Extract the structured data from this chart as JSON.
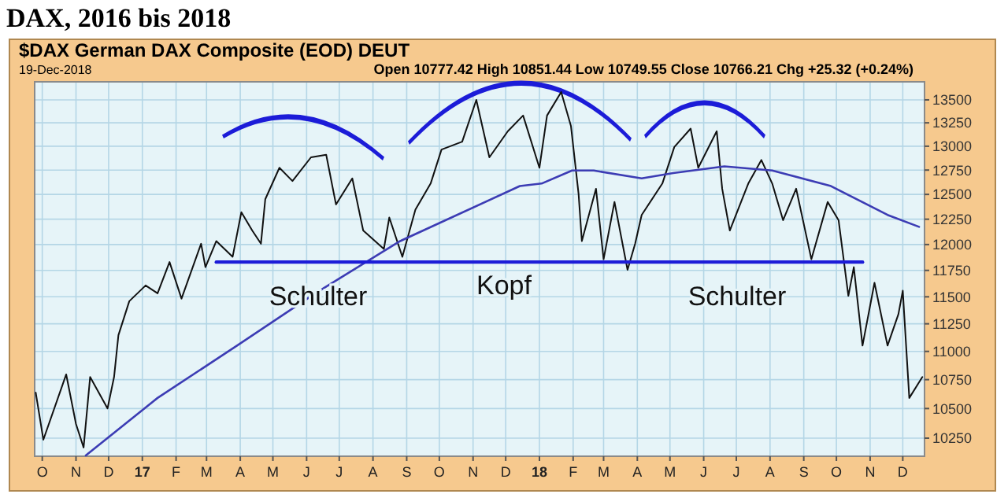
{
  "chart_data": {
    "type": "line",
    "title": "DAX, 2016 bis 2018",
    "subtitle": "$DAX German DAX Composite (EOD) DEUT",
    "annotations": [
      "19-Dec-2018",
      "Open 10777.42 High 10851.44 Low 10749.55 Close 10766.21 Chg +25.32 (+0.24%)",
      "Schulter",
      "Kopf",
      "Schulter"
    ],
    "x": [
      "2016-09-25",
      "2016-10-02",
      "2016-10-23",
      "2016-11-01",
      "2016-11-08",
      "2016-11-14",
      "2016-11-30",
      "2016-12-06",
      "2016-12-10",
      "2016-12-20",
      "2017-01-04",
      "2017-01-15",
      "2017-01-26",
      "2017-02-06",
      "2017-02-24",
      "2017-02-28",
      "2017-03-10",
      "2017-03-25",
      "2017-04-02",
      "2017-04-12",
      "2017-04-20",
      "2017-04-24",
      "2017-05-07",
      "2017-05-19",
      "2017-06-05",
      "2017-06-19",
      "2017-06-28",
      "2017-07-13",
      "2017-07-23",
      "2017-08-11",
      "2017-08-16",
      "2017-08-28",
      "2017-09-09",
      "2017-09-23",
      "2017-10-03",
      "2017-10-22",
      "2017-11-04",
      "2017-11-16",
      "2017-12-03",
      "2017-12-17",
      "2018-01-01",
      "2018-01-08",
      "2018-01-21",
      "2018-01-30",
      "2018-02-06",
      "2018-02-09",
      "2018-02-22",
      "2018-03-01",
      "2018-03-11",
      "2018-03-23",
      "2018-03-30",
      "2018-04-05",
      "2018-04-24",
      "2018-05-05",
      "2018-05-20",
      "2018-05-27",
      "2018-06-13",
      "2018-06-18",
      "2018-06-25",
      "2018-07-12",
      "2018-07-24",
      "2018-08-03",
      "2018-08-13",
      "2018-08-25",
      "2018-09-08",
      "2018-09-23",
      "2018-10-03",
      "2018-10-12",
      "2018-10-17",
      "2018-10-25",
      "2018-11-05",
      "2018-11-17",
      "2018-11-27",
      "2018-12-01",
      "2018-12-07",
      "2018-12-19"
    ],
    "series": [
      {
        "color": "#111111",
        "values": [
          10637,
          10237,
          10796,
          10369,
          10172,
          10773,
          10501,
          10773,
          11146,
          11459,
          11607,
          11533,
          11830,
          11483,
          12008,
          11781,
          12034,
          11881,
          12320,
          12138,
          12008,
          12451,
          12774,
          12637,
          12883,
          12910,
          12398,
          12664,
          12138,
          11957,
          12267,
          11881,
          12346,
          12611,
          12965,
          13048,
          13500,
          12883,
          13160,
          13329,
          12774,
          13329,
          13587,
          13215,
          12504,
          12034,
          12558,
          11857,
          12424,
          11756,
          12008,
          12293,
          12611,
          12992,
          13188,
          12774,
          13160,
          12558,
          12138,
          12611,
          12855,
          12611,
          12240,
          12558,
          11857,
          12424,
          12240,
          11509,
          11781,
          11052,
          11632,
          11052,
          11339,
          11557,
          10591,
          10773
        ]
      },
      {
        "color": "#3c3cb4",
        "x": [
          "2016-11-10",
          "2017-01-15",
          "2017-03-29",
          "2017-06-09",
          "2017-08-26",
          "2017-12-14",
          "2018-01-03",
          "2018-01-31",
          "2018-02-20",
          "2018-04-05",
          "2018-05-04",
          "2018-06-20",
          "2018-08-03",
          "2018-09-26",
          "2018-11-17",
          "2018-12-16"
        ],
        "values": [
          10107,
          10591,
          11052,
          11533,
          12034,
          12585,
          12611,
          12745,
          12745,
          12664,
          12719,
          12788,
          12745,
          12585,
          12293,
          12174
        ]
      },
      {
        "color": "#1c1cd8",
        "x": [
          "2017-03-10",
          "2018-10-25"
        ],
        "values": [
          11830,
          11830
        ]
      }
    ],
    "xlim": [
      "2016-09-24",
      "2018-12-21"
    ],
    "xticks": [
      {
        "value": "2016-10-01",
        "label": "O"
      },
      {
        "value": "2016-11-01",
        "label": "N"
      },
      {
        "value": "2016-12-01",
        "label": "D"
      },
      {
        "value": "2017-01-01",
        "label": "17"
      },
      {
        "value": "2017-02-01",
        "label": "F"
      },
      {
        "value": "2017-03-01",
        "label": "M"
      },
      {
        "value": "2017-04-01",
        "label": "A"
      },
      {
        "value": "2017-05-01",
        "label": "M"
      },
      {
        "value": "2017-06-01",
        "label": "J"
      },
      {
        "value": "2017-07-01",
        "label": "J"
      },
      {
        "value": "2017-08-01",
        "label": "A"
      },
      {
        "value": "2017-09-01",
        "label": "S"
      },
      {
        "value": "2017-10-01",
        "label": "O"
      },
      {
        "value": "2017-11-01",
        "label": "N"
      },
      {
        "value": "2017-12-01",
        "label": "D"
      },
      {
        "value": "2018-01-01",
        "label": "18"
      },
      {
        "value": "2018-02-01",
        "label": "F"
      },
      {
        "value": "2018-03-01",
        "label": "M"
      },
      {
        "value": "2018-04-01",
        "label": "A"
      },
      {
        "value": "2018-05-01",
        "label": "M"
      },
      {
        "value": "2018-06-01",
        "label": "J"
      },
      {
        "value": "2018-07-01",
        "label": "J"
      },
      {
        "value": "2018-08-01",
        "label": "A"
      },
      {
        "value": "2018-09-01",
        "label": "S"
      },
      {
        "value": "2018-10-01",
        "label": "O"
      },
      {
        "value": "2018-11-01",
        "label": "N"
      },
      {
        "value": "2018-12-01",
        "label": "D"
      }
    ],
    "ylim": [
      10100,
      13700
    ],
    "yticks": [
      10250,
      10500,
      10750,
      11000,
      11250,
      11500,
      11750,
      12000,
      12250,
      12500,
      12750,
      13000,
      13250,
      13500
    ],
    "log": true,
    "grid": true
  }
}
